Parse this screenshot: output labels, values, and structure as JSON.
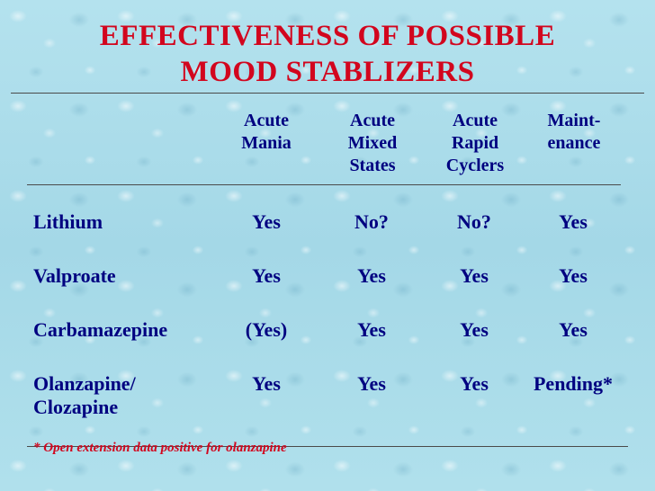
{
  "title": {
    "line1": "EFFECTIVENESS OF POSSIBLE",
    "line2": "MOOD STABLIZERS"
  },
  "columns": [
    {
      "lines": [
        "Acute",
        "Mania",
        ""
      ]
    },
    {
      "lines": [
        "Acute",
        "Mixed",
        "States"
      ]
    },
    {
      "lines": [
        "Acute",
        "Rapid",
        "Cyclers"
      ]
    },
    {
      "lines": [
        "Maint-",
        "enance",
        ""
      ]
    }
  ],
  "rows": [
    {
      "drug": [
        "Lithium",
        ""
      ],
      "values": [
        "Yes",
        "No?",
        "No?",
        "Yes"
      ]
    },
    {
      "drug": [
        "Valproate",
        ""
      ],
      "values": [
        "Yes",
        "Yes",
        "Yes",
        "Yes"
      ]
    },
    {
      "drug": [
        "Carbamazepine",
        ""
      ],
      "values": [
        "(Yes)",
        "Yes",
        "Yes",
        "Yes"
      ]
    },
    {
      "drug": [
        "Olanzapine/",
        "Clozapine"
      ],
      "values": [
        "Yes",
        "Yes",
        "Yes",
        "Pending*"
      ]
    }
  ],
  "footnote": "* Open extension data positive for olanzapine",
  "colors": {
    "title": "#d2061e",
    "text": "#000080",
    "footnote": "#d2061e",
    "background": "#a9dcea"
  }
}
